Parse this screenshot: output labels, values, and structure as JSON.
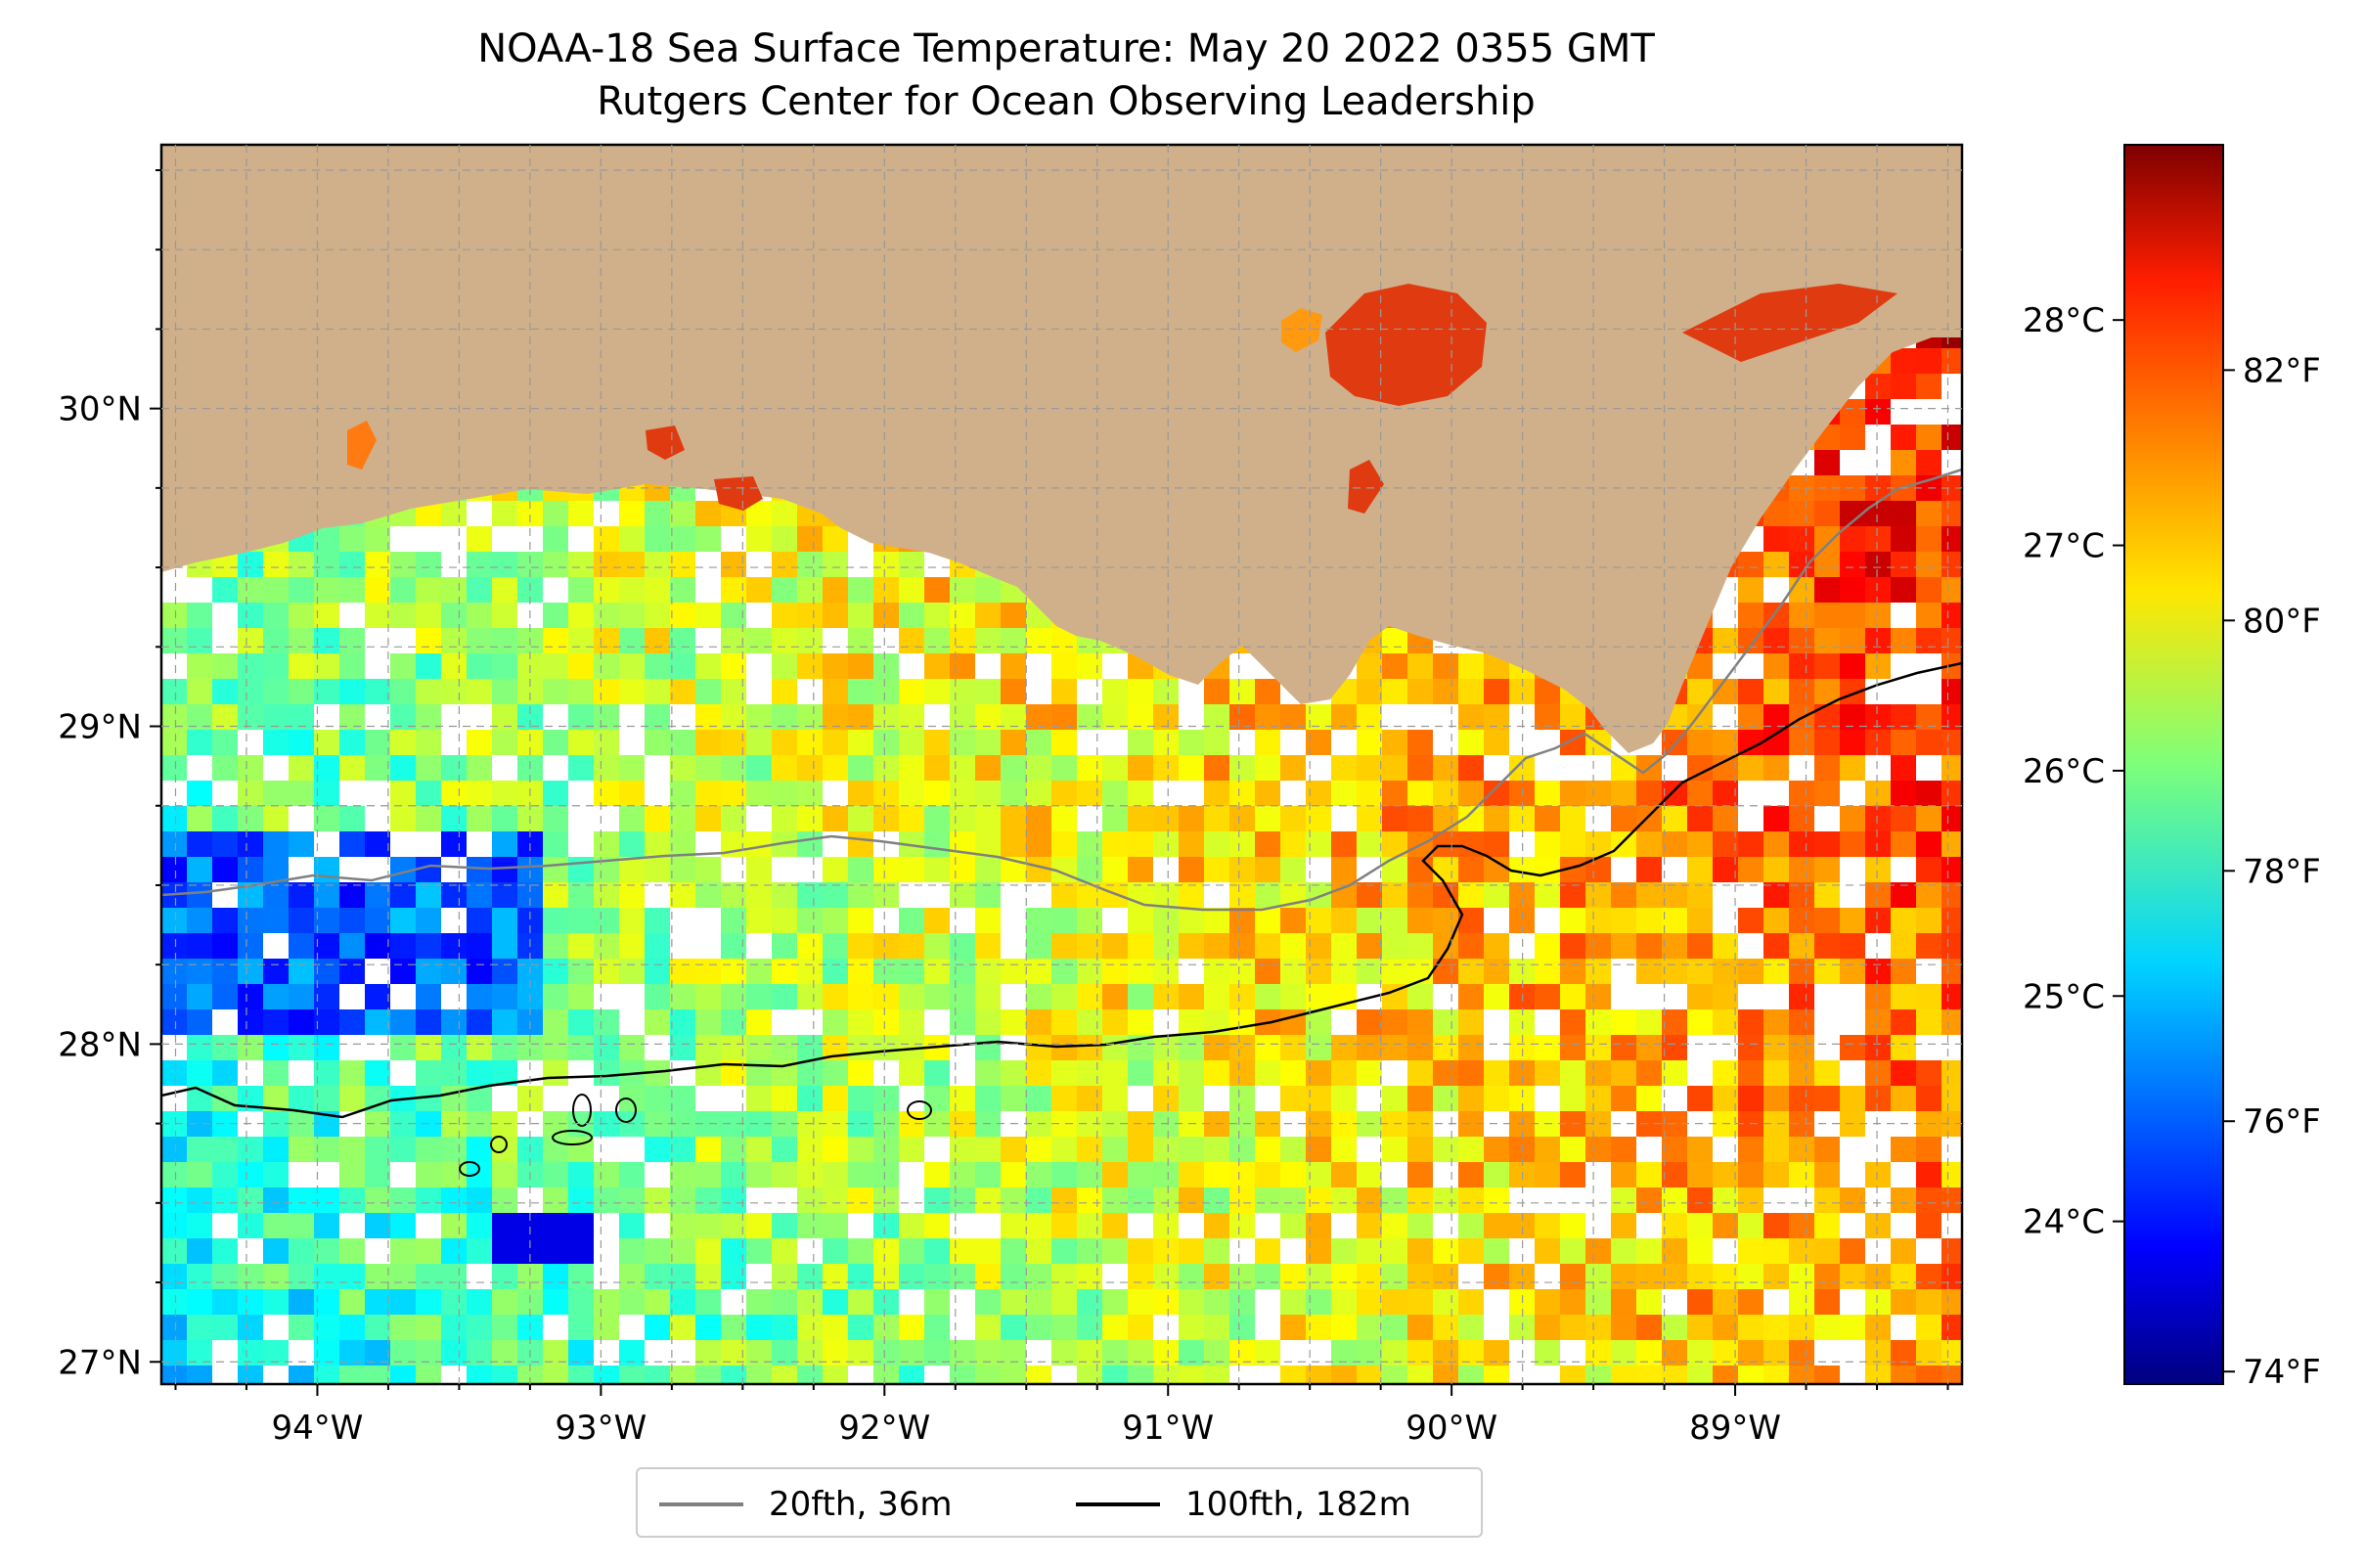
{
  "title": {
    "line1": "NOAA-18 Sea Surface Temperature: May 20 2022 0355 GMT",
    "line2": "Rutgers Center for Ocean Observing Leadership"
  },
  "map": {
    "lon_range": [
      -94.55,
      -88.2
    ],
    "lat_range": [
      26.93,
      30.83
    ],
    "x_ticks": [
      {
        "lon": -94,
        "label": "94°W"
      },
      {
        "lon": -93,
        "label": "93°W"
      },
      {
        "lon": -92,
        "label": "92°W"
      },
      {
        "lon": -91,
        "label": "91°W"
      },
      {
        "lon": -90,
        "label": "90°W"
      },
      {
        "lon": -89,
        "label": "89°W"
      }
    ],
    "y_ticks": [
      {
        "lat": 27,
        "label": "27°N"
      },
      {
        "lat": 28,
        "label": "28°N"
      },
      {
        "lat": 29,
        "label": "29°N"
      },
      {
        "lat": 30,
        "label": "30°N"
      }
    ],
    "land_color": "#CFB08A",
    "gridlines": "dashed"
  },
  "colorbar": {
    "colormap": "jet",
    "celsius_ticks": [
      {
        "value": 24,
        "label": "24°C"
      },
      {
        "value": 25,
        "label": "25°C"
      },
      {
        "value": 26,
        "label": "26°C"
      },
      {
        "value": 27,
        "label": "27°C"
      },
      {
        "value": 28,
        "label": "28°C"
      }
    ],
    "fahrenheit_ticks": [
      {
        "value": 74,
        "label": "74°F"
      },
      {
        "value": 76,
        "label": "76°F"
      },
      {
        "value": 78,
        "label": "78°F"
      },
      {
        "value": 80,
        "label": "80°F"
      },
      {
        "value": 82,
        "label": "82°F"
      }
    ],
    "range_f": [
      73.9,
      83.8
    ]
  },
  "legend": [
    {
      "label": "20fth, 36m",
      "color": "#808080"
    },
    {
      "label": "100fth, 182m",
      "color": "#000000"
    }
  ]
}
